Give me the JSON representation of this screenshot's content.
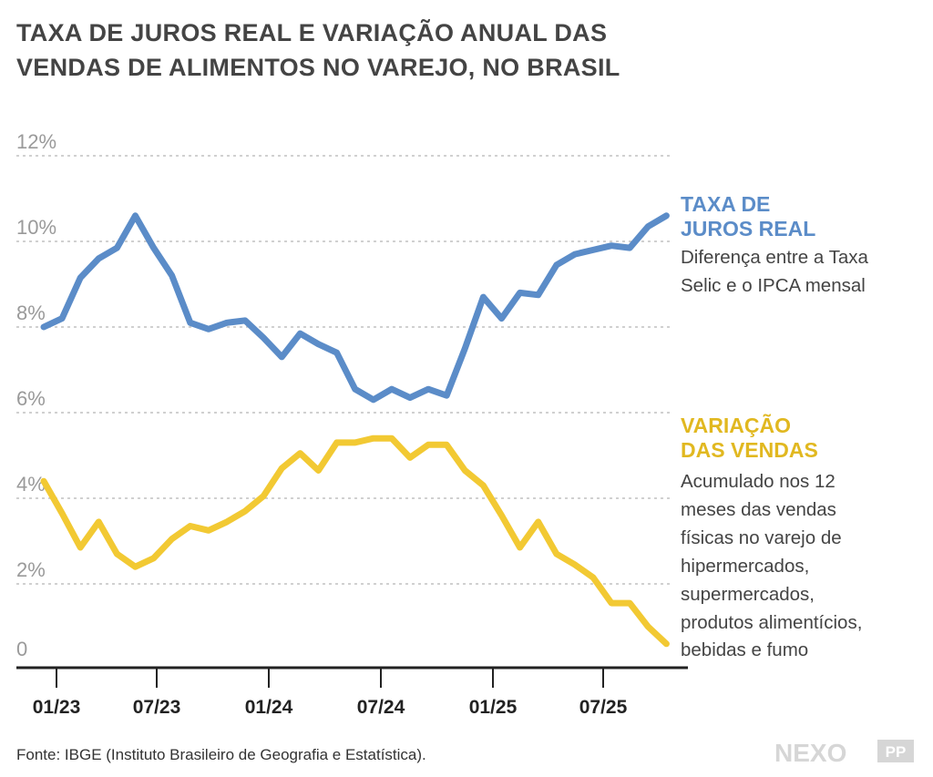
{
  "chart_data": {
    "type": "line",
    "title": [
      "TAXA DE JUROS REAL E VARIAÇÃO ANUAL DAS",
      "VENDAS DE ALIMENTOS NO VAREJO, NO BRASIL"
    ],
    "ylim": [
      0,
      12
    ],
    "yticks": [
      0,
      2,
      4,
      6,
      8,
      10,
      12
    ],
    "ytick_labels": [
      "0",
      "2%",
      "4%",
      "6%",
      "8%",
      "10%",
      "12%"
    ],
    "xtick_labels": [
      "01/23",
      "07/23",
      "01/24",
      "07/24",
      "01/25",
      "07/25"
    ],
    "grid": true,
    "legend_placement": "right, inline labels",
    "x": [
      "2023-01",
      "2023-02",
      "2023-03",
      "2023-04",
      "2023-05",
      "2023-06",
      "2023-07",
      "2023-08",
      "2023-09",
      "2023-10",
      "2023-11",
      "2023-12",
      "2024-01",
      "2024-02",
      "2024-03",
      "2024-04",
      "2024-05",
      "2024-06",
      "2024-07",
      "2024-08",
      "2024-09",
      "2024-10",
      "2024-11",
      "2024-12",
      "2025-01",
      "2025-02",
      "2025-03",
      "2025-04",
      "2025-05",
      "2025-06",
      "2025-07",
      "2025-08",
      "2025-09",
      "2025-10",
      "2025-11"
    ],
    "series": [
      {
        "name": "TAXA DE JUROS REAL",
        "name_lines": [
          "TAXA DE",
          "JUROS REAL"
        ],
        "description_lines": [
          "Diferença entre a Taxa",
          "Selic e o IPCA mensal"
        ],
        "color": "#5b8cc8",
        "label_color": "#5b8cc8",
        "values": [
          8.0,
          8.2,
          9.15,
          9.6,
          9.85,
          10.6,
          9.85,
          9.2,
          8.1,
          7.95,
          8.1,
          8.15,
          7.75,
          7.3,
          7.85,
          7.6,
          7.4,
          6.55,
          6.3,
          6.55,
          6.35,
          6.55,
          6.4,
          7.5,
          8.7,
          8.2,
          8.8,
          8.75,
          9.45,
          9.7,
          9.8,
          9.9,
          9.85,
          10.35,
          10.6
        ]
      },
      {
        "name": "VARIAÇÃO DAS VENDAS",
        "name_lines": [
          "VARIAÇÃO",
          "DAS VENDAS"
        ],
        "description_lines": [
          "Acumulado nos 12",
          "meses das vendas",
          "físicas no varejo de",
          "hipermercados,",
          "supermercados,",
          "produtos alimentícios,",
          "bebidas e fumo"
        ],
        "color": "#f2c933",
        "label_color": "#e1b820",
        "values": [
          4.4,
          3.65,
          2.85,
          3.45,
          2.7,
          2.4,
          2.6,
          3.05,
          3.35,
          3.25,
          3.45,
          3.7,
          4.05,
          4.7,
          5.05,
          4.65,
          5.3,
          5.3,
          5.4,
          5.4,
          4.95,
          5.25,
          5.25,
          4.65,
          4.3,
          3.6,
          2.85,
          3.45,
          2.7,
          2.45,
          2.15,
          1.55,
          1.55,
          1.0,
          0.6
        ]
      }
    ]
  },
  "footer": {
    "source": "Fonte: IBGE (Instituto Brasileiro de Geografia e Estatística).",
    "logo_text": "NEXO",
    "logo_badge": "PP"
  }
}
